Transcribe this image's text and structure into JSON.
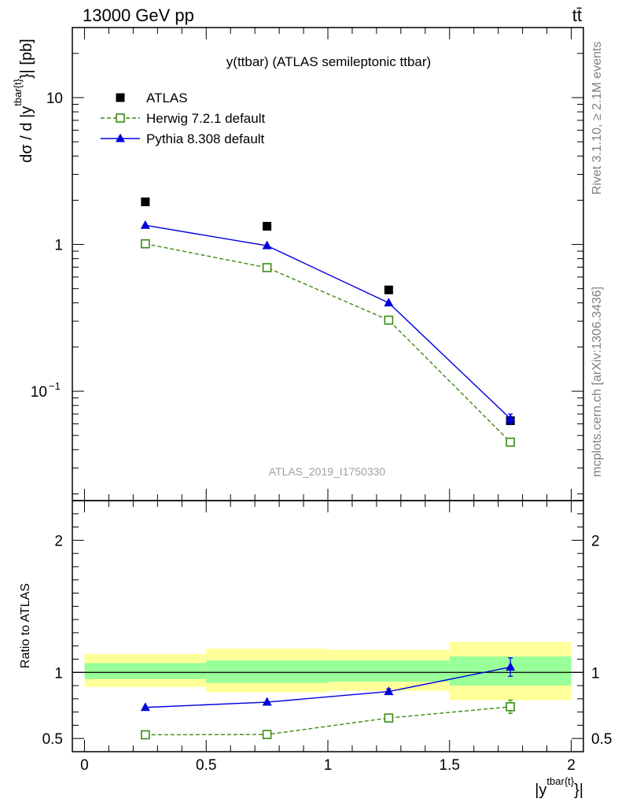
{
  "header": {
    "left": "13000 GeV pp",
    "right": "tt̄"
  },
  "side_labels": {
    "rivet": "Rivet 3.1.10, ≥ 2.1M events",
    "mcplots": "mcplots.cern.ch [arXiv:1306.3436]"
  },
  "colors": {
    "atlas": "#000000",
    "herwig": "#3a8a12",
    "pythia": "#0000dd",
    "band_inner": "#99ff99",
    "band_outer": "#ffff99"
  },
  "chart_data": [
    {
      "type": "scatter",
      "title": "y(ttbar) (ATLAS semileptonic ttbar)",
      "watermark": "ATLAS_2019_I1750330",
      "ylabel": "dσ / d |y^{tbar{t}}| [pb]",
      "yscale": "log",
      "ylim": [
        0.018,
        30
      ],
      "xlim": [
        -0.05,
        2.05
      ],
      "y_ticks": [
        {
          "value": 0.1,
          "base": "10",
          "exp": "−1"
        },
        {
          "value": 1,
          "label": "1"
        },
        {
          "value": 10,
          "label": "10"
        }
      ],
      "legend_position": "top-left",
      "series": [
        {
          "name": "ATLAS",
          "marker": "square-filled",
          "line": "none",
          "x": [
            0.25,
            0.75,
            1.25,
            1.75
          ],
          "y": [
            1.95,
            1.33,
            0.49,
            0.063
          ]
        },
        {
          "name": "Herwig 7.2.1 default",
          "marker": "square-open",
          "line": "dashed",
          "x": [
            0.25,
            0.75,
            1.25,
            1.75
          ],
          "y": [
            1.01,
            0.695,
            0.305,
            0.045
          ]
        },
        {
          "name": "Pythia 8.308 default",
          "marker": "triangle-filled",
          "line": "solid",
          "x": [
            0.25,
            0.75,
            1.25,
            1.75
          ],
          "y": [
            1.35,
            0.98,
            0.4,
            0.065
          ],
          "yerr": [
            0,
            0,
            0,
            0.005
          ]
        }
      ]
    },
    {
      "type": "scatter",
      "ylabel": "Ratio to ATLAS",
      "xlabel": "|y^{tbar{t}}|",
      "ylim": [
        0.4,
        2.3
      ],
      "xlim": [
        -0.05,
        2.05
      ],
      "x_ticks": [
        0,
        0.5,
        1,
        1.5,
        2
      ],
      "x_tick_labels": [
        "0",
        "0.5",
        "1",
        "1.5",
        "2"
      ],
      "y_ticks": [
        0.5,
        1,
        2
      ],
      "y_tick_labels": [
        "0.5",
        "1",
        "2"
      ],
      "reference": 1,
      "bands": [
        {
          "xlo": 0,
          "xhi": 0.5,
          "inner": [
            0.95,
            1.07
          ],
          "outer": [
            0.89,
            1.14
          ]
        },
        {
          "xlo": 0.5,
          "xhi": 1,
          "inner": [
            0.92,
            1.09
          ],
          "outer": [
            0.85,
            1.18
          ]
        },
        {
          "xlo": 1,
          "xhi": 1.5,
          "inner": [
            0.93,
            1.09
          ],
          "outer": [
            0.86,
            1.17
          ]
        },
        {
          "xlo": 1.5,
          "xhi": 2,
          "inner": [
            0.9,
            1.12
          ],
          "outer": [
            0.79,
            1.23
          ]
        }
      ],
      "series": [
        {
          "name": "Herwig 7.2.1 default",
          "marker": "square-open",
          "line": "dashed",
          "x": [
            0.25,
            0.75,
            1.25,
            1.75
          ],
          "y": [
            0.528,
            0.53,
            0.655,
            0.74
          ],
          "yerr": [
            0,
            0,
            0,
            0.05
          ]
        },
        {
          "name": "Pythia 8.308 default",
          "marker": "triangle-filled",
          "line": "solid",
          "x": [
            0.25,
            0.75,
            1.25,
            1.75
          ],
          "y": [
            0.735,
            0.775,
            0.855,
            1.04
          ],
          "yerr": [
            0,
            0,
            0.02,
            0.07
          ]
        }
      ]
    }
  ]
}
